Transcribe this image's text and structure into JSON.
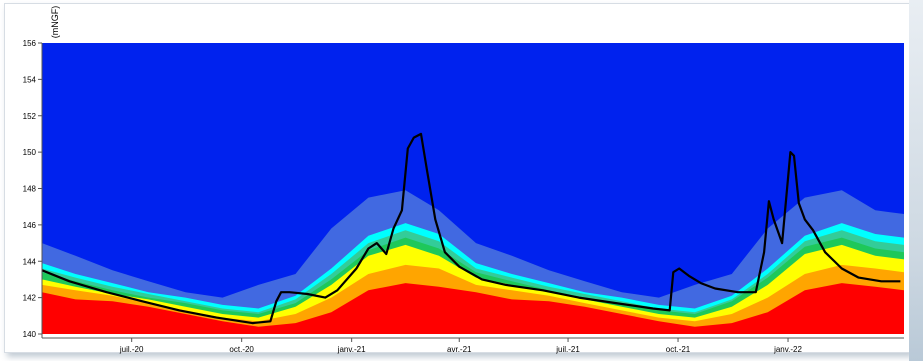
{
  "chart_data": {
    "type": "area",
    "ylabel": "(mNGF)",
    "ylim": [
      140,
      156
    ],
    "yticks": [
      140,
      142,
      144,
      146,
      148,
      150,
      152,
      154,
      156
    ],
    "xlim": [
      "2020-04-17",
      "2022-04-08"
    ],
    "xticks": [
      {
        "date": "2020-07-01",
        "label": "juil.-20"
      },
      {
        "date": "2020-10-01",
        "label": "oct.-20"
      },
      {
        "date": "2021-01-01",
        "label": "janv.-21"
      },
      {
        "date": "2021-04-01",
        "label": "avr.-21"
      },
      {
        "date": "2021-07-01",
        "label": "juil.-21"
      },
      {
        "date": "2021-10-01",
        "label": "oct.-21"
      },
      {
        "date": "2022-01-01",
        "label": "janv.-22"
      }
    ],
    "band_colors": [
      "#ff0000",
      "#ffa500",
      "#ffff00",
      "#1ec85a",
      "#33cc99",
      "#00ffff",
      "#4169e1",
      "#0022ee"
    ],
    "x": [
      "2020-04-17",
      "2020-05-15",
      "2020-06-15",
      "2020-07-15",
      "2020-08-15",
      "2020-09-15",
      "2020-10-15",
      "2020-11-15",
      "2020-12-15",
      "2021-01-15",
      "2021-02-15",
      "2021-03-15",
      "2021-04-15",
      "2021-05-15",
      "2021-06-15",
      "2021-07-15",
      "2021-08-15",
      "2021-09-15",
      "2021-10-15",
      "2021-11-15",
      "2021-12-15",
      "2022-01-15",
      "2022-02-15",
      "2022-03-15",
      "2022-04-08"
    ],
    "bands": [
      [
        142.3,
        141.9,
        141.8,
        141.5,
        141.1,
        140.7,
        140.4,
        140.6,
        141.2,
        142.4,
        142.8,
        142.6,
        142.3,
        141.9,
        141.8,
        141.5,
        141.1,
        140.7,
        140.4,
        140.6,
        141.2,
        142.4,
        142.8,
        142.6,
        142.4
      ],
      [
        142.7,
        142.4,
        142.1,
        141.7,
        141.3,
        140.9,
        140.7,
        141.1,
        142.0,
        143.3,
        143.8,
        143.6,
        142.7,
        142.4,
        142.1,
        141.7,
        141.3,
        140.9,
        140.7,
        141.1,
        142.0,
        143.3,
        143.8,
        143.6,
        143.4
      ],
      [
        143.0,
        142.6,
        142.2,
        141.9,
        141.5,
        141.1,
        140.9,
        141.5,
        142.7,
        144.3,
        144.9,
        144.3,
        143.1,
        142.7,
        142.3,
        141.9,
        141.5,
        141.1,
        140.9,
        141.5,
        142.7,
        144.4,
        144.9,
        144.3,
        144.1
      ],
      [
        143.4,
        142.9,
        142.4,
        142.0,
        141.7,
        141.3,
        141.1,
        141.7,
        143.0,
        144.6,
        145.3,
        144.7,
        143.4,
        142.9,
        142.4,
        142.0,
        141.7,
        141.3,
        141.1,
        141.8,
        143.1,
        144.8,
        145.3,
        144.7,
        144.5
      ],
      [
        143.6,
        143.1,
        142.6,
        142.2,
        141.8,
        141.4,
        141.2,
        141.9,
        143.3,
        145.0,
        145.7,
        145.1,
        143.6,
        143.1,
        142.6,
        142.2,
        141.8,
        141.4,
        141.2,
        141.9,
        143.3,
        145.1,
        145.7,
        145.1,
        144.9
      ],
      [
        143.9,
        143.3,
        142.8,
        142.3,
        142.0,
        141.6,
        141.4,
        142.1,
        143.6,
        145.4,
        146.1,
        145.5,
        143.9,
        143.3,
        142.8,
        142.3,
        142.0,
        141.6,
        141.4,
        142.1,
        143.6,
        145.4,
        146.1,
        145.5,
        145.3
      ],
      [
        145.0,
        144.3,
        143.5,
        142.9,
        142.3,
        142.0,
        142.7,
        143.3,
        145.8,
        147.5,
        147.9,
        146.8,
        145.0,
        144.3,
        143.5,
        142.9,
        142.3,
        142.0,
        142.7,
        143.3,
        145.8,
        147.5,
        147.9,
        146.8,
        146.6
      ],
      [
        156,
        156,
        156,
        156,
        156,
        156,
        156,
        156,
        156,
        156,
        156,
        156,
        156,
        156,
        156,
        156,
        156,
        156,
        156,
        156,
        156,
        156,
        156,
        156,
        156
      ]
    ],
    "series": [
      {
        "x": [
          "2020-04-17",
          "2020-05-10",
          "2020-06-10",
          "2020-07-10",
          "2020-08-10",
          "2020-09-10",
          "2020-10-10",
          "2020-10-25",
          "2020-10-30",
          "2020-11-03",
          "2020-11-10",
          "2020-11-25",
          "2020-12-10",
          "2020-12-20",
          "2021-01-05",
          "2021-01-15",
          "2021-01-22",
          "2021-01-30",
          "2021-02-05",
          "2021-02-12",
          "2021-02-17",
          "2021-02-22",
          "2021-02-28",
          "2021-03-05",
          "2021-03-12",
          "2021-03-20",
          "2021-04-01",
          "2021-04-20",
          "2021-05-10",
          "2021-06-10",
          "2021-07-10",
          "2021-08-10",
          "2021-09-10",
          "2021-09-24",
          "2021-09-27",
          "2021-10-02",
          "2021-10-10",
          "2021-10-20",
          "2021-11-01",
          "2021-11-20",
          "2021-12-05",
          "2021-12-12",
          "2021-12-16",
          "2021-12-20",
          "2021-12-27",
          "2022-01-03",
          "2022-01-06",
          "2022-01-10",
          "2022-01-15",
          "2022-01-22",
          "2022-02-01",
          "2022-02-15",
          "2022-03-01",
          "2022-03-20",
          "2022-04-05"
        ],
        "values": [
          143.5,
          142.9,
          142.3,
          141.8,
          141.3,
          140.9,
          140.6,
          140.7,
          141.8,
          142.3,
          142.3,
          142.2,
          142.0,
          142.4,
          143.6,
          144.7,
          145.0,
          144.4,
          145.8,
          146.8,
          150.2,
          150.8,
          151.0,
          149.0,
          146.3,
          144.5,
          143.7,
          143.0,
          142.7,
          142.4,
          142.0,
          141.7,
          141.4,
          141.3,
          143.4,
          143.6,
          143.2,
          142.8,
          142.5,
          142.3,
          142.3,
          144.5,
          147.3,
          146.3,
          145.0,
          150.0,
          149.8,
          147.2,
          146.3,
          145.7,
          144.5,
          143.6,
          143.1,
          142.9,
          142.9
        ]
      }
    ]
  }
}
